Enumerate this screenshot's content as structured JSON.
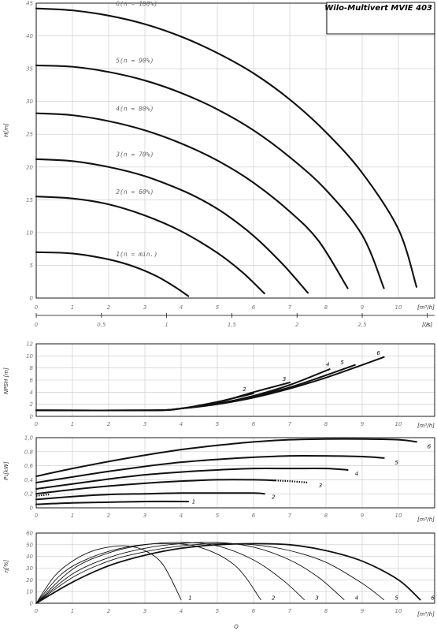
{
  "title": "Wilo-Multivert MVIE 403",
  "bottom_label": "Q",
  "chart_data": [
    {
      "id": "head",
      "type": "line",
      "ylabel": "H[m]",
      "xunit": "[m³/h]",
      "x2unit": "[l/s]",
      "xlim": [
        0,
        11
      ],
      "ylim": [
        0,
        45
      ],
      "xticks": [
        0,
        1,
        2,
        3,
        4,
        5,
        6,
        7,
        8,
        9,
        10
      ],
      "yticks": [
        0,
        5,
        10,
        15,
        20,
        25,
        30,
        35,
        40,
        45
      ],
      "x2ticks": [
        "0",
        "0,5",
        "1",
        "1,5",
        "2",
        "2,5",
        "3"
      ],
      "series": [
        {
          "name": "1(n = min.)",
          "x": [
            0,
            1,
            2,
            2.7,
            3.3,
            3.8,
            4.2
          ],
          "y": [
            7,
            6.8,
            5.9,
            4.8,
            3.4,
            1.8,
            0.3
          ]
        },
        {
          "name": "2(n = 60%)",
          "x": [
            0,
            1,
            2,
            3,
            4,
            5,
            5.7,
            6.3
          ],
          "y": [
            15.5,
            15.2,
            14.3,
            12.6,
            10.2,
            6.9,
            3.9,
            0.7
          ]
        },
        {
          "name": "3(n = 70%)",
          "x": [
            0,
            1,
            2,
            3,
            4,
            4.6,
            5.2,
            6,
            6.8,
            7.5
          ],
          "y": [
            21.2,
            20.9,
            20,
            18.6,
            16.5,
            14.9,
            12.9,
            9.5,
            5.2,
            0.8
          ]
        },
        {
          "name": "4(n = 80%)",
          "x": [
            0,
            1,
            2,
            3,
            4,
            5,
            6,
            7,
            7.8,
            8.6
          ],
          "y": [
            28.2,
            27.9,
            27,
            25.6,
            23.6,
            21,
            17.6,
            13.2,
            8.7,
            1.5
          ]
        },
        {
          "name": "5(n = 90%)",
          "x": [
            0,
            1,
            2,
            3,
            4,
            5,
            6,
            7,
            8,
            9,
            9.6
          ],
          "y": [
            35.5,
            35.3,
            34.5,
            33.2,
            31.3,
            28.8,
            25.6,
            21.5,
            16.5,
            9.6,
            1.5
          ]
        },
        {
          "name": "6(n = 100%)",
          "x": [
            0,
            1,
            2,
            3,
            4,
            5,
            6,
            7,
            8,
            9,
            10,
            10.5
          ],
          "y": [
            44.2,
            43.9,
            43.1,
            41.8,
            39.9,
            37.4,
            34.3,
            30.3,
            25.3,
            19.1,
            10.5,
            1.7
          ]
        }
      ]
    },
    {
      "id": "npsh",
      "type": "line",
      "ylabel": "NPSH [m]",
      "xunit": "[m³/h]",
      "xlim": [
        0,
        11
      ],
      "ylim": [
        0,
        12
      ],
      "xticks": [
        0,
        1,
        2,
        3,
        4,
        5,
        6,
        7,
        8,
        9,
        10
      ],
      "yticks": [
        0,
        2,
        4,
        6,
        8,
        10,
        12
      ],
      "series": [
        {
          "name": "2",
          "x": [
            0,
            3.2,
            4,
            5,
            6
          ],
          "y": [
            1,
            1,
            1.3,
            2.4,
            3.8
          ]
        },
        {
          "name": "3",
          "x": [
            0,
            3.2,
            4,
            5,
            6,
            7
          ],
          "y": [
            1,
            1,
            1.3,
            2.3,
            4,
            5.6
          ]
        },
        {
          "name": "4",
          "x": [
            0,
            3.2,
            4,
            5,
            6,
            7,
            8.1
          ],
          "y": [
            1,
            1,
            1.3,
            2.1,
            3.4,
            5.2,
            7.8
          ]
        },
        {
          "name": "5",
          "x": [
            0,
            3.2,
            4,
            5,
            6,
            7,
            8,
            8.8
          ],
          "y": [
            1,
            1,
            1.3,
            2.1,
            3.3,
            4.8,
            6.8,
            8.5
          ]
        },
        {
          "name": "6",
          "x": [
            0,
            3.2,
            4,
            5,
            6,
            7,
            8,
            9,
            9.6
          ],
          "y": [
            1,
            1,
            1.3,
            2.0,
            3.1,
            4.6,
            6.4,
            8.5,
            9.8
          ]
        }
      ]
    },
    {
      "id": "power",
      "type": "line",
      "ylabel": "P₁[kW]",
      "xunit": "[m³/h]",
      "xlim": [
        0,
        11
      ],
      "ylim": [
        0,
        1.0
      ],
      "xticks": [
        0,
        1,
        2,
        3,
        4,
        5,
        6,
        7,
        8,
        9,
        10
      ],
      "yticks": [
        "0",
        "0,2",
        "0,4",
        "0,6",
        "0,8",
        "1,0"
      ],
      "series": [
        {
          "name": "1",
          "x": [
            0,
            1,
            2,
            3,
            4.2
          ],
          "y": [
            0.05,
            0.07,
            0.08,
            0.09,
            0.09
          ]
        },
        {
          "name": "2",
          "x": [
            0,
            1,
            2,
            3,
            4,
            5,
            6,
            6.3
          ],
          "y": [
            0.12,
            0.16,
            0.19,
            0.2,
            0.21,
            0.21,
            0.21,
            0.2
          ]
        },
        {
          "name": "3",
          "x": [
            0,
            1,
            2,
            3,
            4,
            5,
            6,
            6.6
          ],
          "y": [
            0.2,
            0.26,
            0.31,
            0.35,
            0.38,
            0.4,
            0.4,
            0.39
          ],
          "ext_x": [
            6.6,
            7.0,
            7.5
          ],
          "ext_y": [
            0.39,
            0.38,
            0.36
          ]
        },
        {
          "name": "4",
          "x": [
            0,
            1,
            2,
            3,
            4,
            5,
            6,
            7,
            8,
            8.6
          ],
          "y": [
            0.27,
            0.34,
            0.41,
            0.47,
            0.51,
            0.54,
            0.56,
            0.56,
            0.56,
            0.54
          ]
        },
        {
          "name": "5",
          "x": [
            0,
            1,
            2,
            3,
            4,
            5,
            6,
            7,
            8,
            9,
            9.6
          ],
          "y": [
            0.36,
            0.44,
            0.52,
            0.59,
            0.65,
            0.69,
            0.72,
            0.74,
            0.74,
            0.73,
            0.71
          ]
        },
        {
          "name": "6",
          "x": [
            0,
            1,
            2,
            3,
            4,
            5,
            6,
            7,
            8,
            9,
            10,
            10.5
          ],
          "y": [
            0.45,
            0.56,
            0.66,
            0.75,
            0.83,
            0.89,
            0.94,
            0.97,
            0.98,
            0.98,
            0.97,
            0.94
          ]
        }
      ]
    },
    {
      "id": "efficiency",
      "type": "line",
      "ylabel": "η[%]",
      "xunit": "[m³/h]",
      "xlim": [
        0,
        11
      ],
      "ylim": [
        0,
        60
      ],
      "xticks": [
        0,
        1,
        2,
        3,
        4,
        5,
        6,
        7,
        8,
        9,
        10
      ],
      "yticks": [
        0,
        10,
        20,
        30,
        40,
        50,
        60
      ],
      "series": [
        {
          "name": "1",
          "x": [
            0,
            0.5,
            1,
            1.5,
            2,
            2.5,
            3,
            3.5,
            4
          ],
          "y": [
            0,
            23,
            36,
            44,
            48,
            49,
            45,
            33,
            3
          ]
        },
        {
          "name": "2",
          "x": [
            0,
            0.7,
            1.5,
            2.5,
            3.5,
            4.5,
            5.5,
            6.2
          ],
          "y": [
            0,
            25,
            39,
            48,
            51,
            48,
            32,
            3
          ]
        },
        {
          "name": "3",
          "x": [
            0,
            1,
            2,
            3,
            4,
            5,
            6,
            6.8,
            7.4
          ],
          "y": [
            0,
            29,
            43,
            50,
            52,
            49,
            37,
            20,
            3
          ]
        },
        {
          "name": "4",
          "x": [
            0,
            1,
            2,
            3,
            4,
            5,
            6,
            7,
            7.8,
            8.5
          ],
          "y": [
            0,
            25,
            39,
            47,
            51,
            52,
            48,
            37,
            22,
            3
          ]
        },
        {
          "name": "5",
          "x": [
            0,
            1,
            2,
            3,
            4,
            5,
            6,
            7,
            8,
            9,
            9.6
          ],
          "y": [
            0,
            22,
            36,
            44,
            49,
            51,
            50,
            45,
            35,
            17,
            3
          ]
        },
        {
          "name": "6",
          "x": [
            0,
            1,
            2,
            3,
            4,
            5,
            6,
            7,
            8,
            9,
            10,
            10.6
          ],
          "y": [
            0,
            18,
            32,
            41,
            47,
            50,
            51,
            50,
            45,
            36,
            20,
            3
          ]
        }
      ]
    }
  ]
}
